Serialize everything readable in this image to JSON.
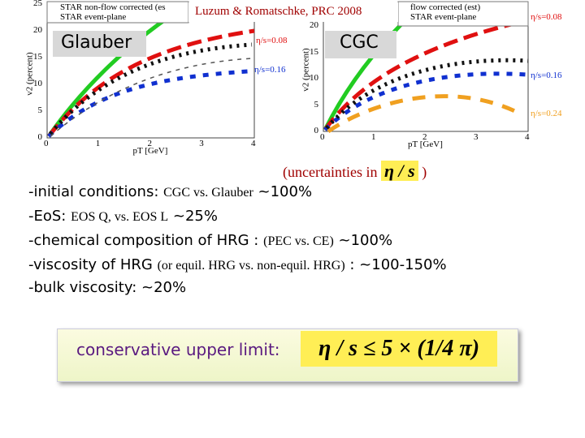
{
  "citation": "Luzum & Romatschke, PRC 2008",
  "plots": [
    {
      "label": "Glauber",
      "legend": [
        "STAR non-flow corrected (es",
        "STAR event-plane"
      ],
      "y_axis_label": "v2 (percent)",
      "x_axis_label": "pT [GeV]",
      "yticks": [
        "0",
        "5",
        "10",
        "15",
        "20",
        "25"
      ],
      "xticks": [
        "0",
        "1",
        "2",
        "3",
        "4"
      ],
      "curve_labels": [
        "η/s=0.08",
        "η/s=0.16"
      ]
    },
    {
      "label": "CGC",
      "legend": [
        "flow corrected (est)",
        "STAR event-plane"
      ],
      "y_axis_label": "v2 (percent)",
      "x_axis_label": "pT [GeV]",
      "yticks": [
        "0",
        "5",
        "10",
        "15",
        "20"
      ],
      "xticks": [
        "0",
        "1",
        "2",
        "3",
        "4"
      ],
      "curve_labels": [
        "η/s=0.08",
        "η/s=0.16",
        "η/s=0.24"
      ]
    }
  ],
  "uncertainties": {
    "text": "(uncertainties in",
    "symbol": "η / s",
    "close": ")"
  },
  "items": [
    [
      "-initial conditions:",
      "CGC vs. Glauber",
      "~100%"
    ],
    [
      "-EoS:",
      "EOS Q,  vs. EOS L",
      "~25%"
    ],
    [
      "-chemical composition of HRG :",
      "(PEC vs. CE)",
      "~100%"
    ],
    [
      "-viscosity of HRG",
      "(or equil. HRG vs. non-equil.  HRG)",
      ": ~100-150%"
    ],
    [
      "-bulk viscosity:",
      "~20%"
    ]
  ],
  "conclusion": {
    "text": "conservative upper limit:",
    "formula": "η / s ≤ 5 × (1/4 π)"
  }
}
